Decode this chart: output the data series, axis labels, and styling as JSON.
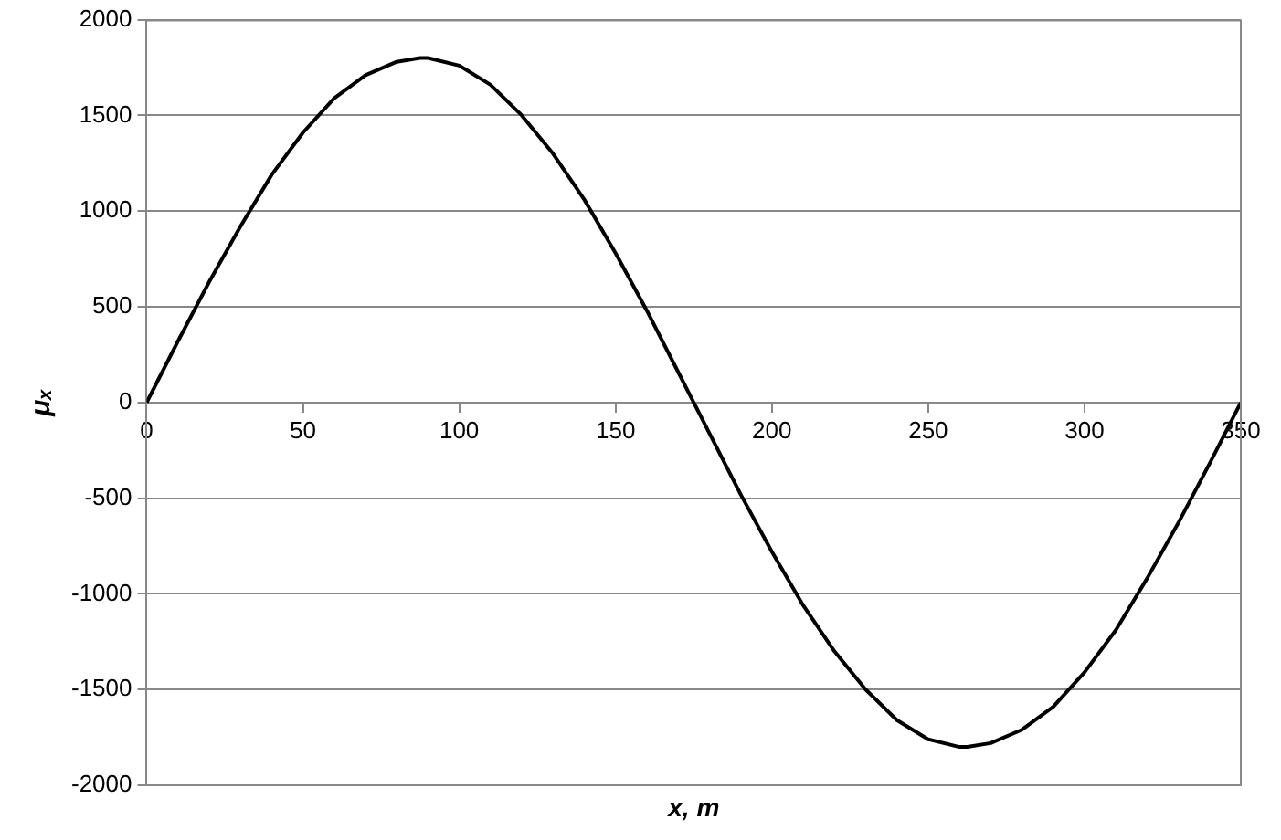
{
  "chart_data": {
    "type": "line",
    "xlabel": "x, m",
    "ylabel": "μₓ",
    "x": [
      0,
      10,
      20,
      30,
      40,
      50,
      60,
      70,
      80,
      87.5,
      90,
      100,
      110,
      120,
      130,
      140,
      150,
      160,
      170,
      175,
      180,
      190,
      200,
      210,
      220,
      230,
      240,
      250,
      260,
      262.5,
      270,
      280,
      290,
      300,
      310,
      320,
      330,
      340,
      350
    ],
    "series": [
      {
        "color": "#000000",
        "values": [
          0,
          320,
          630,
          920,
          1190,
          1410,
          1590,
          1710,
          1780,
          1800,
          1800,
          1760,
          1660,
          1500,
          1300,
          1060,
          780,
          480,
          160,
          0,
          -160,
          -480,
          -780,
          -1060,
          -1300,
          -1500,
          -1660,
          -1760,
          -1800,
          -1800,
          -1780,
          -1710,
          -1590,
          -1410,
          -1190,
          -920,
          -630,
          -320,
          0
        ]
      }
    ],
    "xlim": [
      0,
      350
    ],
    "xticks": [
      0,
      50,
      100,
      150,
      200,
      250,
      300,
      350
    ],
    "ylim": [
      -2000,
      2000
    ],
    "yticks": [
      -2000,
      -1500,
      -1000,
      -500,
      0,
      500,
      1000,
      1500,
      2000
    ],
    "grid": "y",
    "legend": false,
    "marker": "none",
    "line_style": "solid"
  }
}
